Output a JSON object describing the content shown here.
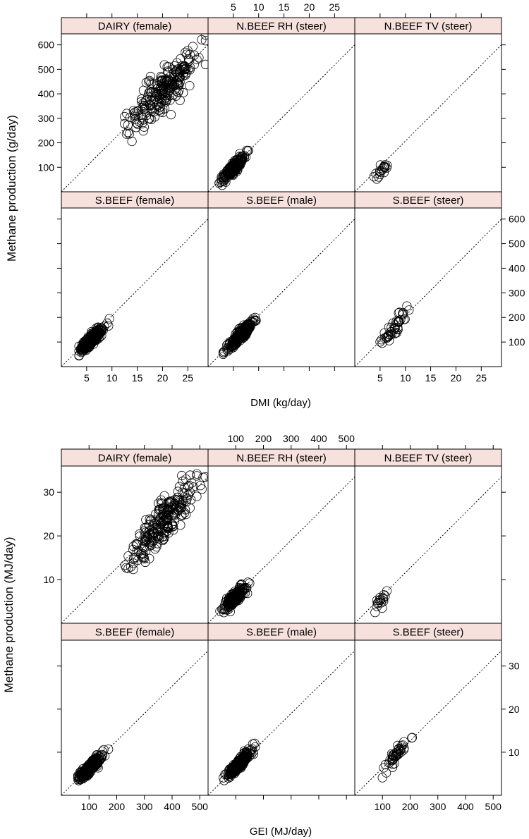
{
  "chart_data": [
    {
      "type": "scatter",
      "xlabel": "DMI (kg/day)",
      "ylabel": "Methane production (g/day)",
      "xlim": [
        0,
        29
      ],
      "ylim": [
        0,
        645
      ],
      "xticks": [
        5,
        10,
        15,
        20,
        25
      ],
      "yticks": [
        100,
        200,
        300,
        400,
        500,
        600
      ],
      "reference_line": {
        "slope": 20.7,
        "intercept": 0,
        "style": "dotted"
      },
      "layout": {
        "columns": 3,
        "rows": 2,
        "alternating_axes": true
      },
      "panels": [
        {
          "label": "DAIRY (female)",
          "n_points": 230,
          "x_range": [
            12.5,
            28.5
          ],
          "x_center": 20.5,
          "slope": 20.5,
          "y_spread": 40
        },
        {
          "label": "N.BEEF RH (steer)",
          "n_points": 170,
          "x_range": [
            2,
            8
          ],
          "x_center": 5.2,
          "slope": 19.5,
          "y_spread": 12
        },
        {
          "label": "N.BEEF TV (steer)",
          "n_points": 18,
          "x_range": [
            3.5,
            7.2
          ],
          "x_center": 5.2,
          "slope": 17,
          "y_spread": 14
        },
        {
          "label": "S.BEEF (female)",
          "n_points": 260,
          "x_range": [
            3.5,
            9.5
          ],
          "x_center": 6,
          "slope": 18.5,
          "y_spread": 11
        },
        {
          "label": "S.BEEF (male)",
          "n_points": 230,
          "x_range": [
            3,
            9.5
          ],
          "x_center": 6.5,
          "slope": 20,
          "y_spread": 11
        },
        {
          "label": "S.BEEF (steer)",
          "n_points": 45,
          "x_range": [
            5,
            11.5
          ],
          "x_center": 8,
          "slope": 20,
          "y_spread": 18
        }
      ]
    },
    {
      "type": "scatter",
      "xlabel": "GEI (MJ/day)",
      "ylabel": "Methane production (MJ/day)",
      "xlim": [
        0,
        530
      ],
      "ylim": [
        0,
        36
      ],
      "xticks": [
        100,
        200,
        300,
        400,
        500
      ],
      "yticks": [
        10,
        20,
        30
      ],
      "reference_line": {
        "slope": 0.0633,
        "intercept": 0,
        "style": "dotted"
      },
      "layout": {
        "columns": 3,
        "rows": 2,
        "alternating_axes": true
      },
      "panels": [
        {
          "label": "DAIRY (female)",
          "n_points": 230,
          "x_range": [
            230,
            520
          ],
          "x_center": 370,
          "slope": 0.063,
          "y_spread": 2.2
        },
        {
          "label": "N.BEEF RH (steer)",
          "n_points": 170,
          "x_range": [
            40,
            150
          ],
          "x_center": 95,
          "slope": 0.06,
          "y_spread": 0.7
        },
        {
          "label": "N.BEEF TV (steer)",
          "n_points": 18,
          "x_range": [
            65,
            130
          ],
          "x_center": 95,
          "slope": 0.055,
          "y_spread": 0.8
        },
        {
          "label": "S.BEEF (female)",
          "n_points": 260,
          "x_range": [
            60,
            170
          ],
          "x_center": 105,
          "slope": 0.062,
          "y_spread": 0.6
        },
        {
          "label": "S.BEEF (male)",
          "n_points": 230,
          "x_range": [
            55,
            170
          ],
          "x_center": 110,
          "slope": 0.065,
          "y_spread": 0.6
        },
        {
          "label": "S.BEEF (steer)",
          "n_points": 45,
          "x_range": [
            100,
            220
          ],
          "x_center": 150,
          "slope": 0.065,
          "y_spread": 1.0
        }
      ]
    }
  ]
}
